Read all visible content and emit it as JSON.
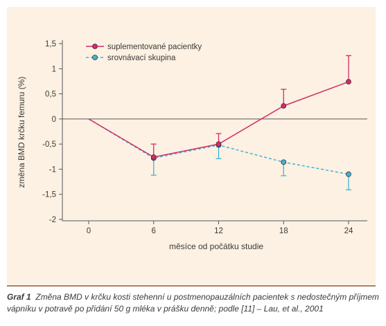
{
  "chart_data": {
    "type": "line",
    "x": [
      0,
      6,
      12,
      18,
      24
    ],
    "xticks": [
      "0",
      "6",
      "12",
      "18",
      "24"
    ],
    "xlabel": "měsíce od počátku studie",
    "ylabel": "změna BMD krčku femuru (%)",
    "ylim": [
      -2,
      1.5
    ],
    "yticks": [
      -2,
      -1.5,
      -1,
      -0.5,
      0,
      0.5,
      1,
      1.5
    ],
    "ytick_labels": [
      "-2",
      "-1,5",
      "-1",
      "-0,5",
      "0",
      "0,5",
      "1",
      "1,5"
    ],
    "grid": false,
    "legend_position": "top-left",
    "series": [
      {
        "name": "suplementované pacientky",
        "color": "#d6296b",
        "line_style": "solid",
        "values": [
          0,
          -0.76,
          -0.5,
          0.26,
          0.74
        ],
        "error_bars": [
          null,
          {
            "upper": -0.5
          },
          {
            "upper": -0.29
          },
          {
            "upper": 0.59
          },
          {
            "upper": 1.26
          }
        ]
      },
      {
        "name": "srovnávací skupina",
        "color": "#3fb3d6",
        "line_style": "dashed",
        "values": [
          0,
          -0.78,
          -0.52,
          -0.86,
          -1.1
        ],
        "error_bars": [
          null,
          {
            "lower": -1.12
          },
          {
            "lower": -0.79
          },
          {
            "lower": -1.13
          },
          {
            "lower": -1.41
          }
        ]
      }
    ]
  },
  "caption": {
    "label": "Graf 1",
    "text": "Změna BMD v krčku kosti stehenní u postmenopauzálních pacientek s nedostečným příjmem vápníku v potravě po přidání 50 g mléka v prášku denně; podle [11] – Lau, et al., 2001"
  }
}
